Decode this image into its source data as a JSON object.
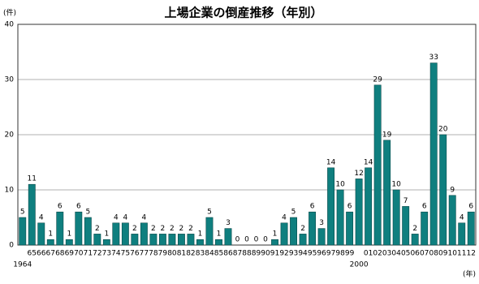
{
  "chart_data": {
    "type": "bar",
    "title": "上場企業の倒産推移（年別）",
    "y_unit": "(件)",
    "x_unit": "(年)",
    "categories": [
      "1964",
      "65",
      "66",
      "67",
      "68",
      "69",
      "70",
      "71",
      "72",
      "73",
      "74",
      "75",
      "76",
      "77",
      "78",
      "79",
      "80",
      "81",
      "82",
      "83",
      "84",
      "85",
      "86",
      "87",
      "88",
      "89",
      "90",
      "91",
      "92",
      "93",
      "94",
      "95",
      "96",
      "97",
      "98",
      "99",
      "2000",
      "01",
      "02",
      "03",
      "04",
      "05",
      "06",
      "07",
      "08",
      "09",
      "10",
      "11",
      "12"
    ],
    "values": [
      5,
      11,
      4,
      1,
      6,
      1,
      6,
      5,
      2,
      1,
      4,
      4,
      2,
      4,
      2,
      2,
      2,
      2,
      2,
      1,
      5,
      1,
      3,
      0,
      0,
      0,
      0,
      1,
      4,
      5,
      2,
      6,
      3,
      14,
      10,
      6,
      12,
      14,
      29,
      19,
      10,
      7,
      2,
      6,
      33,
      20,
      9,
      4,
      6
    ],
    "color": "#0f7f7f",
    "ylim": [
      0,
      40
    ],
    "yticks": [
      0,
      10,
      20,
      30,
      40
    ],
    "grid": true
  }
}
